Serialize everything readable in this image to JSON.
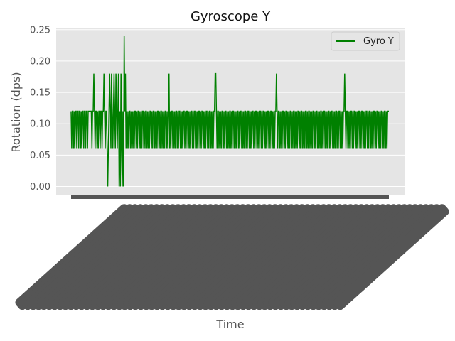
{
  "chart_data": {
    "type": "line",
    "title": "Gyroscope Y",
    "xlabel": "Time",
    "ylabel": "Rotation (dps)",
    "ylim": [
      -0.013,
      0.252
    ],
    "yticks": [
      "0.00",
      "0.05",
      "0.10",
      "0.15",
      "0.20",
      "0.25"
    ],
    "grid": true,
    "legend_position": "top-right",
    "colors": {
      "series": "#008000",
      "axes_bg": "#e5e5e5",
      "grid": "#ffffff",
      "tick_label": "#555555"
    },
    "series": [
      {
        "name": "Gyro Y",
        "values": [
          0.12,
          0.06,
          0.12,
          0.12,
          0.06,
          0.12,
          0.06,
          0.12,
          0.12,
          0.06,
          0.12,
          0.12,
          0.06,
          0.12,
          0.12,
          0.06,
          0.12,
          0.06,
          0.12,
          0.12,
          0.06,
          0.12,
          0.12,
          0.06,
          0.12,
          0.12,
          0.06,
          0.12,
          0.12,
          0.12,
          0.12,
          0.12,
          0.12,
          0.06,
          0.12,
          0.12,
          0.18,
          0.12,
          0.06,
          0.12,
          0.12,
          0.06,
          0.12,
          0.06,
          0.12,
          0.12,
          0.06,
          0.12,
          0.12,
          0.06,
          0.12,
          0.12,
          0.18,
          0.12,
          0.06,
          0.12,
          0.12,
          0.06,
          0.0,
          0.06,
          0.12,
          0.18,
          0.12,
          0.06,
          0.18,
          0.12,
          0.06,
          0.12,
          0.18,
          0.12,
          0.06,
          0.18,
          0.12,
          0.06,
          0.12,
          0.18,
          0.0,
          0.12,
          0.0,
          0.18,
          0.06,
          0.0,
          0.12,
          0.0,
          0.24,
          0.12,
          0.18,
          0.06,
          0.12,
          0.06,
          0.12,
          0.06,
          0.12,
          0.12,
          0.06,
          0.12,
          0.06,
          0.12,
          0.06,
          0.12,
          0.06,
          0.12,
          0.12,
          0.06,
          0.12,
          0.06,
          0.12,
          0.12,
          0.06,
          0.12,
          0.06,
          0.12,
          0.06,
          0.12,
          0.12,
          0.06,
          0.12,
          0.06,
          0.12,
          0.12,
          0.06,
          0.12,
          0.06,
          0.12,
          0.06,
          0.12,
          0.12,
          0.06,
          0.12,
          0.06,
          0.12,
          0.12,
          0.06,
          0.12,
          0.06,
          0.12,
          0.06,
          0.12,
          0.12,
          0.06,
          0.12,
          0.06,
          0.12,
          0.12,
          0.06,
          0.12,
          0.06,
          0.12,
          0.06,
          0.12,
          0.12,
          0.06,
          0.12,
          0.06,
          0.12,
          0.18,
          0.06,
          0.12,
          0.06,
          0.12,
          0.12,
          0.06,
          0.12,
          0.06,
          0.12,
          0.06,
          0.12,
          0.12,
          0.06,
          0.12,
          0.06,
          0.12,
          0.12,
          0.06,
          0.12,
          0.06,
          0.12,
          0.06,
          0.12,
          0.12,
          0.06,
          0.12,
          0.06,
          0.12,
          0.12,
          0.06,
          0.12,
          0.06,
          0.12,
          0.06,
          0.12,
          0.12,
          0.06,
          0.12,
          0.06,
          0.12,
          0.12,
          0.06,
          0.12,
          0.06,
          0.12,
          0.06,
          0.12,
          0.12,
          0.06,
          0.12,
          0.06,
          0.12,
          0.12,
          0.06,
          0.12,
          0.06,
          0.12,
          0.06,
          0.12,
          0.12,
          0.06,
          0.12,
          0.06,
          0.12,
          0.12,
          0.06,
          0.12,
          0.06,
          0.12,
          0.06,
          0.12,
          0.12,
          0.18,
          0.18,
          0.12,
          0.06,
          0.12,
          0.12,
          0.06,
          0.12,
          0.06,
          0.12,
          0.06,
          0.12,
          0.12,
          0.06,
          0.12,
          0.06,
          0.12,
          0.12,
          0.06,
          0.12,
          0.06,
          0.12,
          0.06,
          0.12,
          0.12,
          0.06,
          0.12,
          0.06,
          0.12,
          0.12,
          0.06,
          0.12,
          0.06,
          0.12,
          0.06,
          0.12,
          0.12,
          0.06,
          0.12,
          0.06,
          0.12,
          0.12,
          0.06,
          0.12,
          0.06,
          0.12,
          0.06,
          0.12,
          0.12,
          0.06,
          0.12,
          0.06,
          0.12,
          0.12,
          0.06,
          0.12,
          0.06,
          0.12,
          0.06,
          0.12,
          0.12,
          0.06,
          0.12,
          0.06,
          0.12,
          0.12,
          0.06,
          0.12,
          0.06,
          0.12,
          0.06,
          0.12,
          0.12,
          0.06,
          0.12,
          0.06,
          0.12,
          0.12,
          0.06,
          0.12,
          0.06,
          0.12,
          0.06,
          0.12,
          0.12,
          0.06,
          0.12,
          0.06,
          0.12,
          0.12,
          0.06,
          0.12,
          0.06,
          0.12,
          0.06,
          0.12,
          0.12,
          0.18,
          0.12,
          0.06,
          0.12,
          0.12,
          0.06,
          0.12,
          0.06,
          0.12,
          0.06,
          0.12,
          0.12,
          0.06,
          0.12,
          0.06,
          0.12,
          0.12,
          0.06,
          0.12,
          0.06,
          0.12,
          0.06,
          0.12,
          0.12,
          0.06,
          0.12,
          0.06,
          0.12,
          0.12,
          0.06,
          0.12,
          0.06,
          0.12,
          0.06,
          0.12,
          0.12,
          0.06,
          0.12,
          0.06,
          0.12,
          0.12,
          0.06,
          0.12,
          0.06,
          0.12,
          0.06,
          0.12,
          0.12,
          0.06,
          0.12,
          0.06,
          0.12,
          0.12,
          0.06,
          0.12,
          0.06,
          0.12,
          0.06,
          0.12,
          0.12,
          0.06,
          0.12,
          0.06,
          0.12,
          0.12,
          0.06,
          0.12,
          0.06,
          0.12,
          0.06,
          0.12,
          0.12,
          0.06,
          0.12,
          0.06,
          0.12,
          0.12,
          0.06,
          0.12,
          0.06,
          0.12,
          0.06,
          0.12,
          0.12,
          0.06,
          0.12,
          0.06,
          0.12,
          0.12,
          0.06,
          0.12,
          0.06,
          0.12,
          0.06,
          0.12,
          0.12,
          0.06,
          0.12,
          0.06,
          0.12,
          0.12,
          0.06,
          0.12,
          0.06,
          0.12,
          0.06,
          0.12,
          0.12,
          0.18,
          0.12,
          0.06,
          0.12,
          0.12,
          0.06,
          0.12,
          0.06,
          0.12,
          0.06,
          0.12,
          0.12,
          0.06,
          0.12,
          0.06,
          0.12,
          0.12,
          0.06,
          0.12,
          0.06,
          0.12,
          0.06,
          0.12,
          0.12,
          0.06,
          0.12,
          0.06,
          0.12,
          0.12,
          0.06,
          0.12,
          0.06,
          0.12,
          0.06,
          0.12,
          0.12,
          0.06,
          0.12,
          0.06,
          0.12,
          0.12,
          0.06,
          0.12,
          0.06,
          0.12,
          0.06,
          0.12,
          0.12,
          0.06,
          0.12,
          0.06,
          0.12,
          0.12,
          0.06,
          0.12,
          0.06,
          0.12,
          0.06,
          0.12,
          0.12,
          0.06,
          0.12,
          0.06,
          0.12,
          0.12,
          0.06,
          0.12,
          0.06,
          0.12,
          0.12,
          0.12
        ]
      }
    ]
  }
}
